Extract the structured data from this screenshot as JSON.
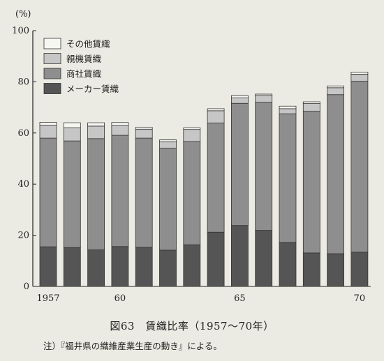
{
  "chart_data": {
    "type": "bar",
    "stacked": true,
    "ylabel": "(%)",
    "ylim": [
      0,
      100
    ],
    "yticks": [
      0,
      20,
      40,
      60,
      80,
      100
    ],
    "x": [
      1957,
      1958,
      1959,
      1960,
      1961,
      1962,
      1963,
      1964,
      1965,
      1966,
      1967,
      1968,
      1969,
      1970
    ],
    "xtick_labels": [
      {
        "x": 1957,
        "label": "1957"
      },
      {
        "x": 1960,
        "label": "60"
      },
      {
        "x": 1965,
        "label": "65"
      },
      {
        "x": 1970,
        "label": "70"
      }
    ],
    "legend_position": "top-left",
    "series": [
      {
        "name": "メーカー賃織",
        "color": "#555555",
        "values": [
          15.5,
          15.2,
          14.3,
          15.6,
          15.3,
          14.2,
          16.3,
          21.2,
          23.8,
          21.9,
          17.2,
          13.1,
          12.8,
          13.4
        ]
      },
      {
        "name": "商社賃織",
        "color": "#8e8e8e",
        "values": [
          42.5,
          41.7,
          43.5,
          43.5,
          42.7,
          39.8,
          40.3,
          42.7,
          47.8,
          50.1,
          50.3,
          55.4,
          62.2,
          66.8
        ]
      },
      {
        "name": "親機賃織",
        "color": "#c6c6c6",
        "values": [
          5.0,
          5.1,
          4.9,
          3.8,
          3.5,
          2.5,
          4.8,
          4.8,
          2.1,
          2.6,
          2.0,
          3.0,
          2.7,
          2.8
        ]
      },
      {
        "name": "その他賃織",
        "color": "#f7f7f2",
        "values": [
          1.2,
          2.0,
          1.3,
          1.2,
          0.7,
          0.8,
          0.6,
          0.8,
          0.9,
          0.6,
          1.0,
          0.7,
          0.7,
          0.8
        ]
      }
    ]
  },
  "caption": "図63　賃織比率（1957〜70年）",
  "note": "注）『福井県の織維産業生産の動き』による。"
}
